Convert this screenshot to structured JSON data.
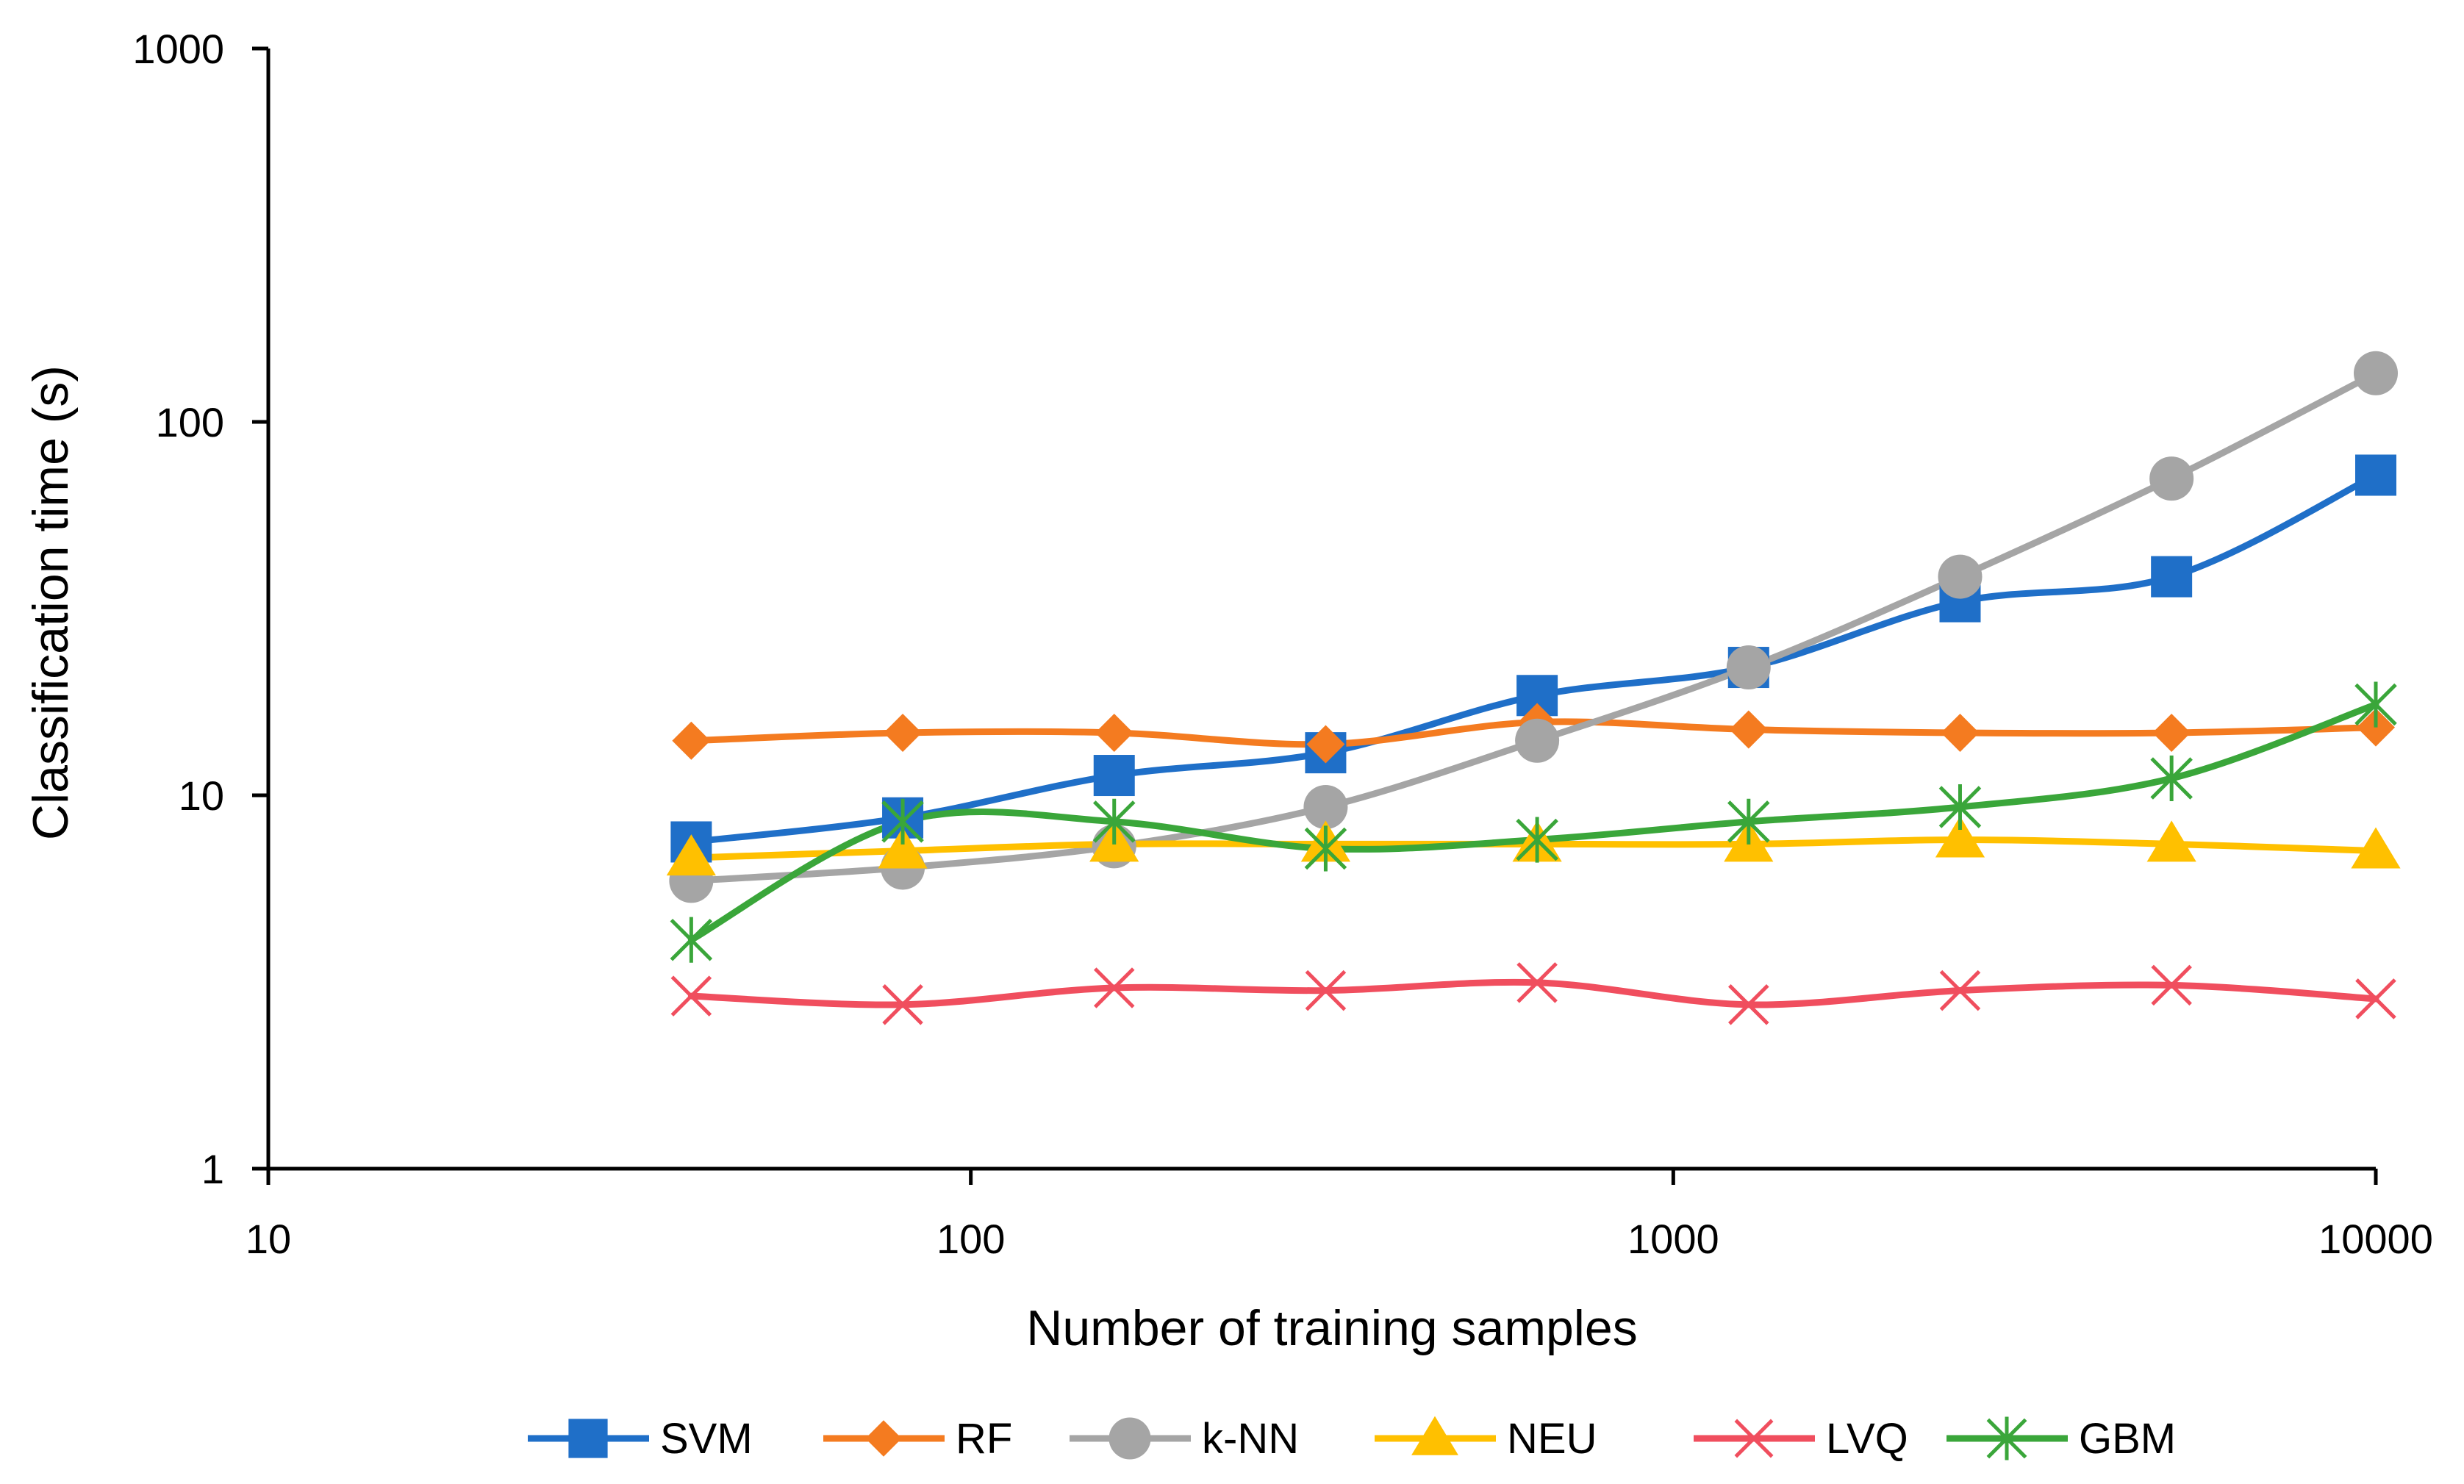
{
  "chart_data": {
    "type": "line",
    "title": "",
    "xlabel": "Number of training samples",
    "ylabel": "Classification time (s)",
    "xscale": "log",
    "yscale": "log",
    "xlim": [
      10,
      10000
    ],
    "ylim": [
      1,
      1000
    ],
    "xticks": [
      10,
      100,
      1000,
      10000
    ],
    "yticks": [
      1,
      10,
      100,
      1000
    ],
    "xtick_labels": [
      "10",
      "100",
      "1000",
      "10000"
    ],
    "ytick_labels": [
      "1",
      "10",
      "100",
      "1000"
    ],
    "grid": false,
    "legend_position": "bottom",
    "x": [
      40,
      80,
      160,
      320,
      640,
      1280,
      2560,
      5120,
      10000
    ],
    "series": [
      {
        "name": "SVM",
        "color": "#1F6FC8",
        "marker": "square",
        "values": [
          7.5,
          8.7,
          11.3,
          13.0,
          18.5,
          22.0,
          33.0,
          38.5,
          72.0
        ]
      },
      {
        "name": "RF",
        "color": "#F47B20",
        "marker": "diamond",
        "values": [
          14.0,
          14.7,
          14.7,
          13.7,
          15.7,
          15.0,
          14.7,
          14.7,
          15.2
        ]
      },
      {
        "name": "k-NN",
        "color": "#A5A5A5",
        "marker": "circle",
        "values": [
          5.9,
          6.4,
          7.3,
          9.3,
          14.0,
          22.0,
          38.5,
          70.5,
          135.0
        ]
      },
      {
        "name": "NEU",
        "color": "#FFC000",
        "marker": "triangle",
        "values": [
          6.8,
          7.1,
          7.4,
          7.4,
          7.4,
          7.4,
          7.6,
          7.4,
          7.1
        ]
      },
      {
        "name": "LVQ",
        "color": "#F04E5E",
        "marker": "x",
        "values": [
          2.9,
          2.75,
          3.05,
          3.0,
          3.15,
          2.75,
          3.0,
          3.1,
          2.85
        ]
      },
      {
        "name": "GBM",
        "color": "#3AA63A",
        "marker": "star",
        "values": [
          4.1,
          8.5,
          8.5,
          7.2,
          7.6,
          8.5,
          9.3,
          11.1,
          17.5
        ]
      }
    ]
  }
}
